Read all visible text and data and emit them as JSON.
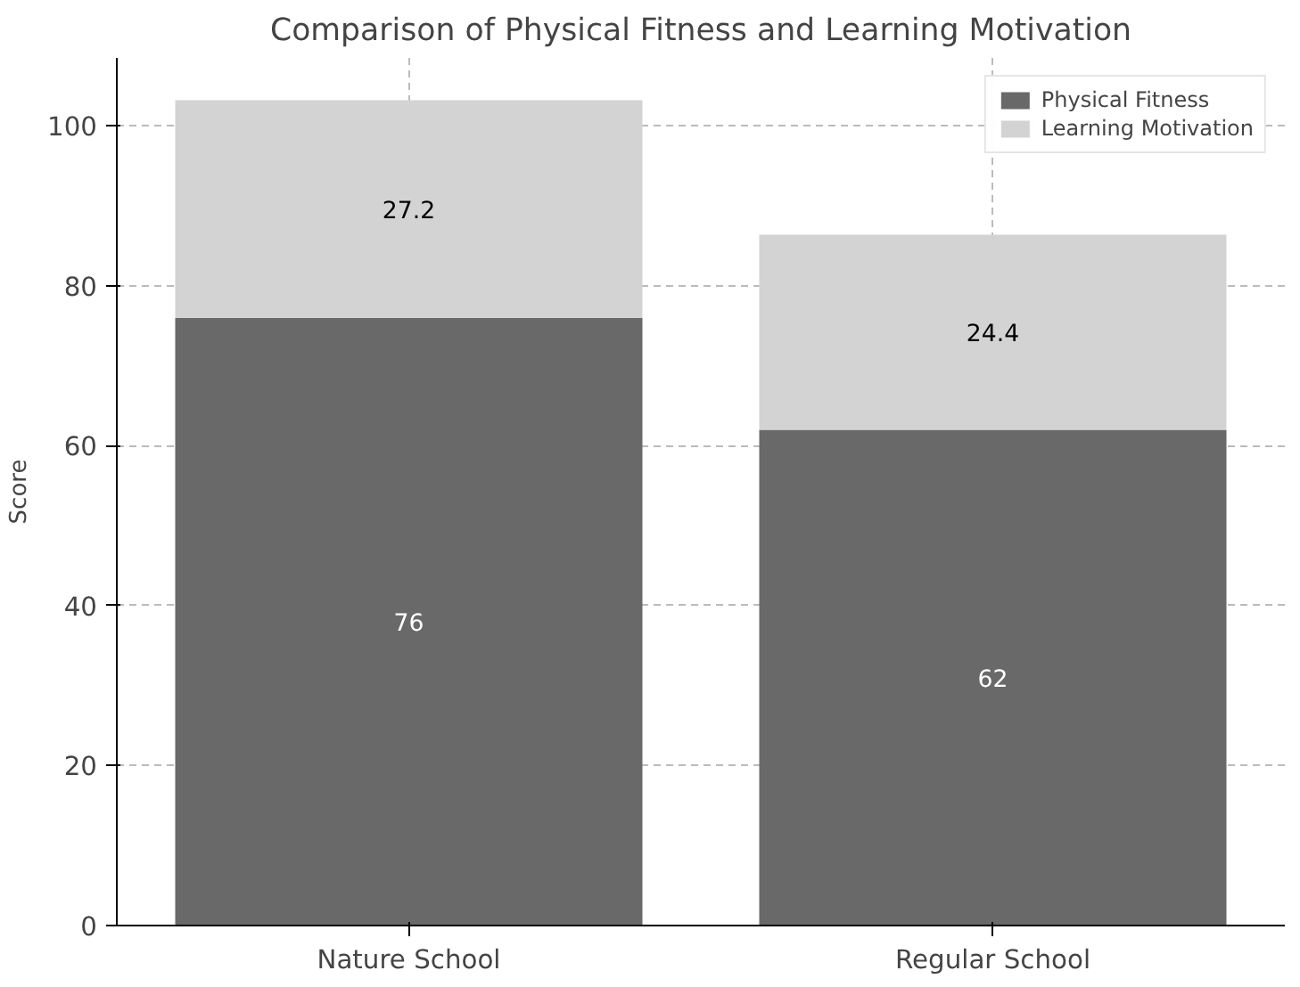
{
  "chart_data": {
    "type": "bar",
    "title": "Comparison of Physical Fitness and Learning Motivation",
    "ylabel": "Score",
    "categories": [
      "Nature School",
      "Regular School"
    ],
    "stacked": true,
    "series": [
      {
        "name": "Physical Fitness",
        "color": "#696969",
        "values": [
          76,
          62
        ]
      },
      {
        "name": "Learning Motivation",
        "color": "#d3d3d3",
        "values": [
          27.2,
          24.4
        ]
      }
    ],
    "ylim": [
      0,
      108.5
    ],
    "yticks": [
      0,
      20,
      40,
      60,
      80,
      100
    ],
    "grid": true,
    "legend": "top right",
    "data_labels": true
  }
}
